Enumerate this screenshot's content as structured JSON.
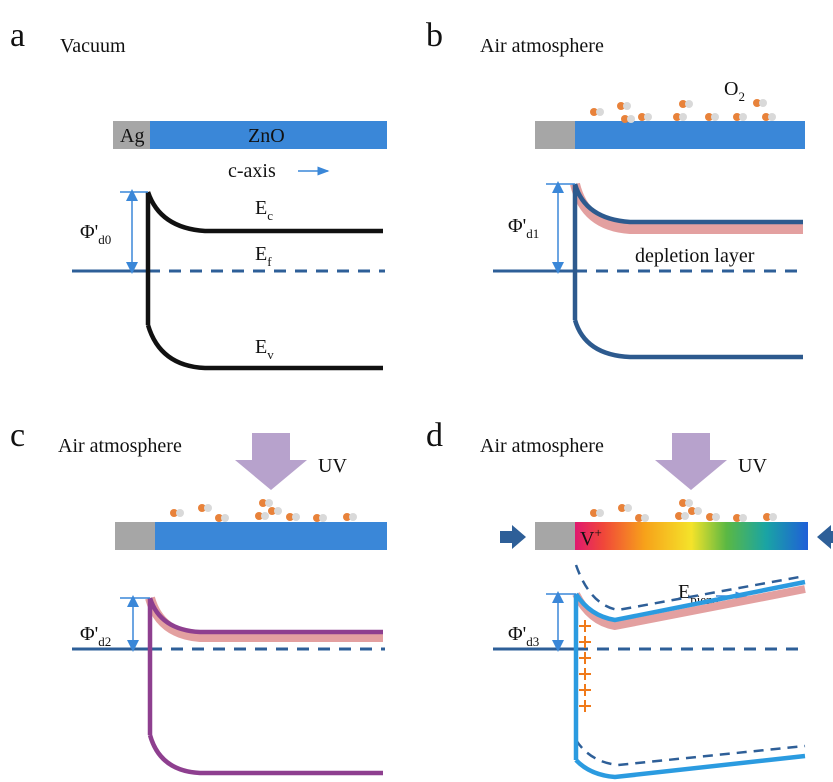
{
  "panel_a": {
    "letter": "a",
    "title": "Vacuum",
    "ag": "Ag",
    "zno": "ZnO",
    "axis": "c-axis",
    "barrier": {
      "main": "Φ'",
      "sub": "d0"
    },
    "ec": {
      "main": "E",
      "sub": "c"
    },
    "ef": {
      "main": "E",
      "sub": "f"
    },
    "ev": {
      "main": "E",
      "sub": "v"
    }
  },
  "panel_b": {
    "letter": "b",
    "title": "Air atmosphere",
    "gas": {
      "main": "O",
      "sub": "2"
    },
    "barrier": {
      "main": "Φ'",
      "sub": "d1"
    },
    "layer": "depletion layer"
  },
  "panel_c": {
    "letter": "c",
    "title": "Air atmosphere",
    "light": "UV",
    "barrier": {
      "main": "Φ'",
      "sub": "d2"
    }
  },
  "panel_d": {
    "letter": "d",
    "title": "Air atmosphere",
    "light": "UV",
    "vacancy": {
      "main": "V",
      "sup": "+"
    },
    "field": {
      "main": "E",
      "sub": "piezo"
    },
    "barrier": {
      "main": "Φ'",
      "sub": "d3"
    }
  }
}
